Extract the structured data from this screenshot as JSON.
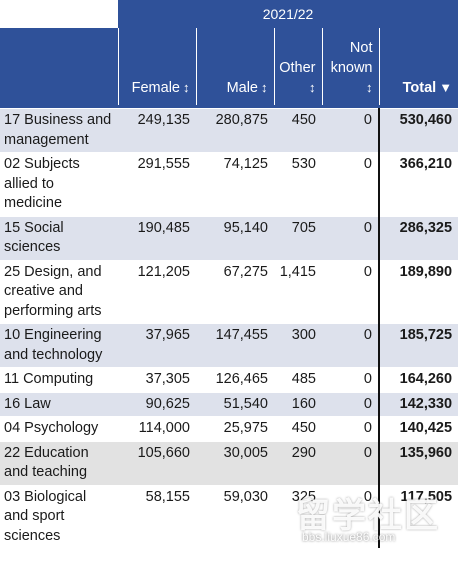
{
  "header": {
    "year": "2021/22",
    "columns": [
      {
        "label": "Female",
        "icon": "sort-updown-icon",
        "glyph": "↕"
      },
      {
        "label": "Male",
        "icon": "sort-updown-icon",
        "glyph": "↕"
      },
      {
        "label": "Other",
        "icon": "sort-updown-icon",
        "glyph": "↕"
      },
      {
        "label_line1": "Not",
        "label_line2": "known",
        "icon": "sort-updown-icon",
        "glyph": "↕"
      },
      {
        "label": "Total",
        "icon": "sort-down-icon",
        "glyph": "▼"
      }
    ]
  },
  "rows": [
    {
      "subject": "17 Business and management",
      "female": "249,135",
      "male": "280,875",
      "other": "450",
      "not_known": "0",
      "total": "530,460"
    },
    {
      "subject": "02 Subjects allied to medicine",
      "female": "291,555",
      "male": "74,125",
      "other": "530",
      "not_known": "0",
      "total": "366,210"
    },
    {
      "subject": "15 Social sciences",
      "female": "190,485",
      "male": "95,140",
      "other": "705",
      "not_known": "0",
      "total": "286,325"
    },
    {
      "subject": "25 Design, and creative and performing arts",
      "female": "121,205",
      "male": "67,275",
      "other": "1,415",
      "not_known": "0",
      "total": "189,890"
    },
    {
      "subject": "10 Engineering and technology",
      "female": "37,965",
      "male": "147,455",
      "other": "300",
      "not_known": "0",
      "total": "185,725"
    },
    {
      "subject": "11 Computing",
      "female": "37,305",
      "male": "126,465",
      "other": "485",
      "not_known": "0",
      "total": "164,260"
    },
    {
      "subject": "16 Law",
      "female": "90,625",
      "male": "51,540",
      "other": "160",
      "not_known": "0",
      "total": "142,330"
    },
    {
      "subject": "04 Psychology",
      "female": "114,000",
      "male": "25,975",
      "other": "450",
      "not_known": "0",
      "total": "140,425"
    },
    {
      "subject": "22 Education and teaching",
      "female": "105,660",
      "male": "30,005",
      "other": "290",
      "not_known": "0",
      "total": "135,960"
    },
    {
      "subject": "03 Biological and sport sciences",
      "female": "58,155",
      "male": "59,030",
      "other": "325",
      "not_known": "0",
      "total": "117,505"
    }
  ],
  "watermark": {
    "text": "留学社区",
    "url": "bbs.liuxue86.com"
  },
  "colors": {
    "header_bg": "#2f5199",
    "row_shade": "#dde1ec",
    "row_shade_grey": "#e2e2e2"
  }
}
